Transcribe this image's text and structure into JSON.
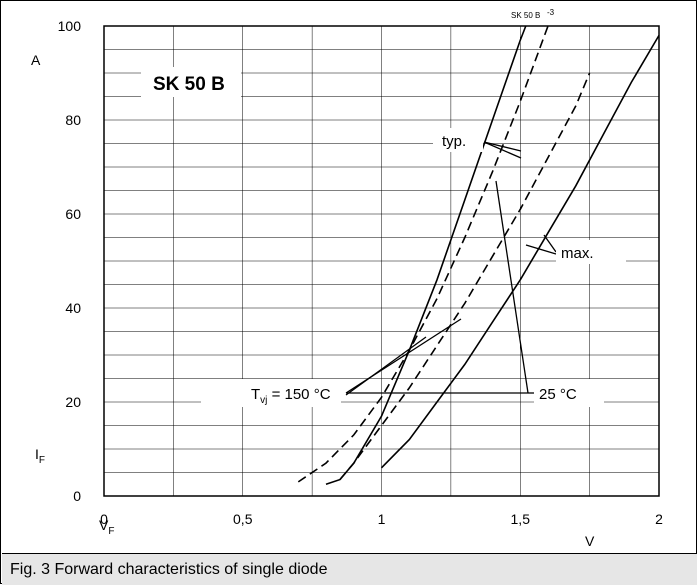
{
  "caption": "Fig. 3 Forward characteristics of single diode",
  "header_code": "SK 50 B",
  "header_code_suffix": "-3",
  "chart_data": {
    "type": "line",
    "title": "SK 50 B",
    "xlabel": "V",
    "ylabel": "I",
    "x_unit": "V",
    "y_unit": "A",
    "xlim": [
      0,
      2
    ],
    "ylim": [
      0,
      100
    ],
    "grid": true,
    "x_ticks": [
      0,
      0.5,
      1,
      1.5,
      2
    ],
    "x_tick_labels": [
      "0",
      "0,5",
      "1",
      "1,5",
      "2"
    ],
    "y_ticks": [
      0,
      20,
      40,
      60,
      80,
      100
    ],
    "y_tick_labels": [
      "0",
      "20",
      "40",
      "60",
      "80",
      "100"
    ],
    "series": [
      {
        "style": "dashed",
        "points": [
          [
            0.7,
            3
          ],
          [
            0.8,
            7
          ],
          [
            0.9,
            13
          ],
          [
            1.0,
            21
          ],
          [
            1.1,
            31
          ],
          [
            1.2,
            42
          ],
          [
            1.3,
            55
          ],
          [
            1.4,
            69
          ],
          [
            1.5,
            84
          ],
          [
            1.6,
            100
          ]
        ]
      },
      {
        "style": "solid",
        "points": [
          [
            0.8,
            2.5
          ],
          [
            0.85,
            3.5
          ],
          [
            0.9,
            7
          ],
          [
            1.0,
            17
          ],
          [
            1.1,
            31
          ],
          [
            1.2,
            46
          ],
          [
            1.3,
            63
          ],
          [
            1.4,
            80
          ],
          [
            1.5,
            97
          ],
          [
            1.52,
            100
          ]
        ]
      },
      {
        "style": "dashed",
        "points": [
          [
            0.85,
            3.5
          ],
          [
            0.9,
            7
          ],
          [
            1.0,
            15
          ],
          [
            1.1,
            23
          ],
          [
            1.2,
            32
          ],
          [
            1.3,
            41
          ],
          [
            1.4,
            51
          ],
          [
            1.5,
            61
          ],
          [
            1.6,
            72
          ],
          [
            1.7,
            83
          ],
          [
            1.75,
            90
          ]
        ]
      },
      {
        "style": "solid",
        "points": [
          [
            1.0,
            6
          ],
          [
            1.1,
            12
          ],
          [
            1.2,
            20
          ],
          [
            1.3,
            28
          ],
          [
            1.4,
            37
          ],
          [
            1.5,
            46
          ],
          [
            1.6,
            56
          ],
          [
            1.7,
            66
          ],
          [
            1.8,
            77
          ],
          [
            1.9,
            88
          ],
          [
            2.0,
            98
          ]
        ]
      }
    ],
    "annotations": {
      "typ": "typ.",
      "max": "max.",
      "tvj_prefix": "T",
      "tvj_sub": "vj",
      "tvj_suffix": " = 150 °C",
      "t25": "25 °C",
      "v_sub": "F",
      "i_sub": "F"
    }
  }
}
